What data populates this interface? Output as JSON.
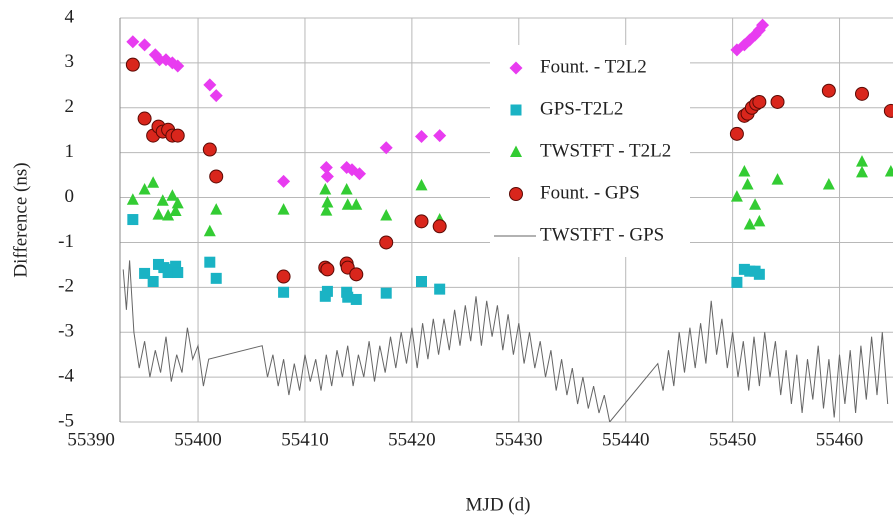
{
  "chart_data": {
    "type": "scatter",
    "xlabel": "MJD (d)",
    "ylabel": "Difference (ns)",
    "xlim": [
      55392.7,
      55465
    ],
    "ylim": [
      -5,
      4
    ],
    "xticks": [
      55390,
      55400,
      55410,
      55420,
      55430,
      55440,
      55450,
      55460
    ],
    "yticks": [
      -5,
      -4,
      -3,
      -2,
      -1,
      0,
      1,
      2,
      3,
      4
    ],
    "grid": true,
    "legend_position": "top",
    "series": [
      {
        "name": "Fount. - T2L2",
        "marker": "diamond",
        "color": "#e83cf0",
        "x": [
          55393.9,
          55395.0,
          55396.0,
          55396.4,
          55397.0,
          55397.6,
          55398.1,
          55401.1,
          55401.7,
          55408.0,
          55412.0,
          55412.1,
          55413.9,
          55414.4,
          55415.1,
          55417.6,
          55420.9,
          55422.6,
          55450.4,
          55451.1,
          55451.6,
          55452.1,
          55452.5,
          55452.8
        ],
        "values": [
          3.47,
          3.4,
          3.18,
          3.07,
          3.07,
          3.0,
          2.93,
          2.51,
          2.27,
          0.36,
          0.67,
          0.47,
          0.67,
          0.62,
          0.53,
          1.11,
          1.36,
          1.38,
          3.29,
          3.4,
          3.51,
          3.62,
          3.73,
          3.84
        ]
      },
      {
        "name": "GPS-T2L2",
        "marker": "square",
        "color": "#1ab3c4",
        "x": [
          55393.9,
          55395.0,
          55395.8,
          55396.3,
          55396.8,
          55397.2,
          55397.6,
          55397.9,
          55398.1,
          55401.1,
          55401.7,
          55408.0,
          55411.9,
          55412.1,
          55413.9,
          55414.0,
          55414.8,
          55417.6,
          55420.9,
          55422.6,
          55450.4,
          55451.1,
          55451.6,
          55452.1,
          55452.5
        ],
        "values": [
          -0.49,
          -1.69,
          -1.87,
          -1.49,
          -1.56,
          -1.67,
          -1.6,
          -1.53,
          -1.67,
          -1.44,
          -1.8,
          -2.11,
          -2.2,
          -2.09,
          -2.11,
          -2.22,
          -2.27,
          -2.13,
          -1.87,
          -2.04,
          -1.89,
          -1.6,
          -1.64,
          -1.64,
          -1.71
        ]
      },
      {
        "name": "TWSTFT - T2L2",
        "marker": "triangle",
        "color": "#33cc33",
        "x": [
          55393.9,
          55395.0,
          55395.8,
          55396.3,
          55396.7,
          55397.2,
          55397.6,
          55397.9,
          55398.1,
          55401.1,
          55401.7,
          55408.0,
          55411.9,
          55412.0,
          55412.1,
          55413.9,
          55414.0,
          55414.8,
          55417.6,
          55420.9,
          55422.6,
          55450.4,
          55451.1,
          55451.4,
          55451.6,
          55452.1,
          55452.5,
          55454.2,
          55459.0,
          55462.1,
          55462.1,
          55464.8
        ],
        "values": [
          -0.05,
          0.18,
          0.33,
          -0.38,
          -0.07,
          -0.4,
          0.04,
          -0.3,
          -0.13,
          -0.75,
          -0.27,
          -0.27,
          0.18,
          -0.29,
          -0.11,
          0.18,
          -0.16,
          -0.16,
          -0.4,
          0.27,
          -0.49,
          0.02,
          0.58,
          0.29,
          -0.6,
          -0.16,
          -0.53,
          0.4,
          0.29,
          0.8,
          0.56,
          0.58
        ]
      },
      {
        "name": "Fount. - GPS",
        "marker": "circle",
        "color": "#d9261c",
        "x": [
          55393.9,
          55395.0,
          55395.8,
          55396.3,
          55396.7,
          55397.2,
          55397.6,
          55398.1,
          55401.1,
          55401.7,
          55408.0,
          55411.9,
          55412.1,
          55413.9,
          55414.0,
          55414.8,
          55417.6,
          55420.9,
          55422.6,
          55450.4,
          55451.1,
          55451.4,
          55451.8,
          55452.2,
          55452.5,
          55454.2,
          55459.0,
          55462.1,
          55464.8
        ],
        "values": [
          2.96,
          1.76,
          1.38,
          1.58,
          1.47,
          1.51,
          1.38,
          1.38,
          1.07,
          0.47,
          -1.76,
          -1.56,
          -1.6,
          -1.47,
          -1.56,
          -1.71,
          -1.0,
          -0.53,
          -0.64,
          1.42,
          1.82,
          1.87,
          2.0,
          2.09,
          2.13,
          2.13,
          2.38,
          2.31,
          1.93
        ]
      },
      {
        "name": "TWSTFT - GPS",
        "marker": "line",
        "color": "#666666",
        "x": [
          55393.0,
          55393.3,
          55393.6,
          55394.0,
          55394.5,
          55395.0,
          55395.5,
          55396.0,
          55396.5,
          55397.0,
          55397.5,
          55398.0,
          55398.5,
          55399.0,
          55399.5,
          55400.0,
          55400.5,
          55401.0,
          55406.0,
          55406.5,
          55407.0,
          55407.5,
          55408.0,
          55408.5,
          55409.0,
          55409.5,
          55410.0,
          55410.5,
          55411.0,
          55411.5,
          55412.0,
          55412.5,
          55413.0,
          55413.5,
          55414.0,
          55414.5,
          55415.0,
          55415.5,
          55416.0,
          55416.5,
          55417.0,
          55417.5,
          55418.0,
          55418.5,
          55419.0,
          55419.5,
          55420.0,
          55420.5,
          55421.0,
          55421.5,
          55422.0,
          55422.5,
          55423.0,
          55423.5,
          55424.0,
          55424.5,
          55425.0,
          55425.5,
          55426.0,
          55426.5,
          55427.0,
          55427.5,
          55428.0,
          55428.5,
          55429.0,
          55429.5,
          55430.0,
          55430.5,
          55431.0,
          55431.5,
          55432.0,
          55432.5,
          55433.0,
          55433.5,
          55434.0,
          55434.5,
          55435.0,
          55435.5,
          55436.0,
          55436.5,
          55437.0,
          55437.5,
          55438.0,
          55438.5,
          55443.0,
          55443.5,
          55444.0,
          55444.5,
          55445.0,
          55445.5,
          55446.0,
          55446.5,
          55447.0,
          55447.5,
          55448.0,
          55448.5,
          55449.0,
          55449.5,
          55450.0,
          55450.5,
          55451.0,
          55451.5,
          55452.0,
          55452.5,
          55453.0,
          55453.5,
          55454.0,
          55454.5,
          55455.0,
          55455.5,
          55456.0,
          55456.5,
          55457.0,
          55457.5,
          55458.0,
          55458.5,
          55459.0,
          55459.5,
          55460.0,
          55460.5,
          55461.0,
          55461.5,
          55462.0,
          55462.5,
          55463.0,
          55463.5,
          55464.0,
          55464.5
        ],
        "values": [
          -1.6,
          -2.5,
          -1.4,
          -3.0,
          -3.8,
          -3.2,
          -4.0,
          -3.4,
          -3.9,
          -3.1,
          -4.1,
          -3.5,
          -3.9,
          -2.9,
          -3.6,
          -3.3,
          -4.2,
          -3.6,
          -3.3,
          -4.0,
          -3.5,
          -4.2,
          -3.6,
          -4.4,
          -3.7,
          -4.3,
          -3.5,
          -4.1,
          -3.6,
          -4.3,
          -3.5,
          -4.2,
          -3.4,
          -4.0,
          -3.3,
          -4.2,
          -3.5,
          -4.0,
          -3.2,
          -4.1,
          -3.3,
          -3.9,
          -3.1,
          -3.8,
          -3.0,
          -3.7,
          -2.9,
          -3.8,
          -2.8,
          -3.6,
          -2.7,
          -3.5,
          -2.7,
          -3.4,
          -2.5,
          -3.3,
          -2.4,
          -3.2,
          -2.2,
          -3.3,
          -2.3,
          -3.1,
          -2.4,
          -3.4,
          -2.6,
          -3.5,
          -2.8,
          -3.7,
          -3.0,
          -3.8,
          -3.2,
          -4.0,
          -3.4,
          -4.3,
          -3.6,
          -4.4,
          -3.8,
          -4.6,
          -4.0,
          -4.7,
          -4.2,
          -4.8,
          -4.4,
          -5.0,
          -3.7,
          -4.3,
          -3.4,
          -4.2,
          -3.0,
          -3.9,
          -2.9,
          -3.8,
          -2.8,
          -3.7,
          -2.3,
          -3.5,
          -2.7,
          -3.8,
          -3.0,
          -4.0,
          -3.2,
          -4.3,
          -3.1,
          -4.2,
          -3.0,
          -4.0,
          -3.2,
          -4.4,
          -3.4,
          -4.6,
          -3.5,
          -4.8,
          -3.6,
          -4.5,
          -3.3,
          -4.7,
          -3.6,
          -4.9,
          -3.5,
          -4.6,
          -3.4,
          -4.8,
          -3.3,
          -4.5,
          -3.1,
          -4.4,
          -3.0,
          -4.6
        ]
      }
    ]
  }
}
